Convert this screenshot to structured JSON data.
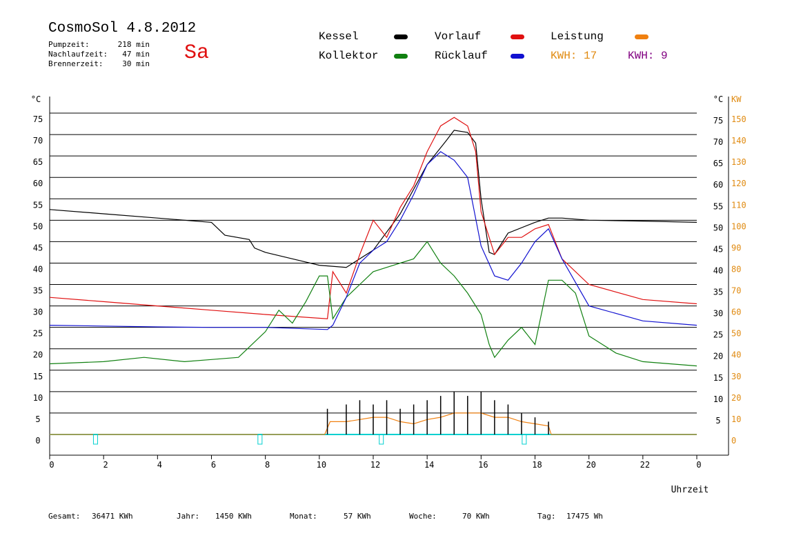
{
  "header": {
    "title": "CosmoSol 4.8.2012",
    "day": "Sa",
    "stats": [
      {
        "label": "Pumpzeit:",
        "value": "218 min"
      },
      {
        "label": "Nachlaufzeit:",
        "value": "47 min"
      },
      {
        "label": "Brennerzeit:",
        "value": "30 min"
      }
    ]
  },
  "legend": {
    "items": [
      {
        "label": "Kessel",
        "color": "#000000"
      },
      {
        "label": "Vorlauf",
        "color": "#e01010"
      },
      {
        "label": "Leistung",
        "color": "#f08010"
      },
      {
        "label": "Kollektor",
        "color": "#108010"
      },
      {
        "label": "Rücklauf",
        "color": "#1010d0"
      }
    ],
    "kwh": [
      {
        "label": "KWH: 17",
        "color": "#e08a10"
      },
      {
        "label": "KWH: 9",
        "color": "#800080"
      }
    ]
  },
  "footer": [
    {
      "label": "Gesamt:",
      "value": "36471 KWh"
    },
    {
      "label": "Jahr:",
      "value": "1450 KWh"
    },
    {
      "label": "Monat:",
      "value": "57 KWh"
    },
    {
      "label": "Woche:",
      "value": "70 KWh"
    },
    {
      "label": "Tag:",
      "value": "17475 Wh"
    }
  ],
  "chart_data": {
    "type": "line",
    "xlabel": "Uhrzeit",
    "ylabel_left": "°C",
    "ylabel_right": "KW",
    "xlim": [
      0,
      24
    ],
    "ylim": [
      0,
      75
    ],
    "y2lim": [
      0,
      150
    ],
    "x_ticks": [
      "0",
      "2",
      "4",
      "6",
      "8",
      "10",
      "12",
      "14",
      "16",
      "18",
      "20",
      "22",
      "0"
    ],
    "y_ticks_left": [
      "0",
      "5",
      "10",
      "15",
      "20",
      "25",
      "30",
      "35",
      "40",
      "45",
      "50",
      "55",
      "60",
      "65",
      "70",
      "75"
    ],
    "y_ticks_right_temp": [
      "5",
      "10",
      "15",
      "20",
      "25",
      "30",
      "35",
      "40",
      "45",
      "50",
      "55",
      "60",
      "65",
      "70",
      "75"
    ],
    "y_ticks_right_kw": [
      "0",
      "10",
      "20",
      "30",
      "40",
      "50",
      "60",
      "70",
      "80",
      "90",
      "100",
      "110",
      "120",
      "130",
      "140",
      "150"
    ],
    "grid": true,
    "series": [
      {
        "name": "Kessel",
        "color": "#000000",
        "x": [
          0,
          2,
          4,
          6,
          6.5,
          7.4,
          7.6,
          8,
          9,
          10,
          11,
          12,
          13,
          14,
          14.7,
          15,
          15.5,
          15.8,
          16,
          16.3,
          16.5,
          17,
          18,
          18.5,
          19,
          20,
          22,
          24
        ],
        "y": [
          52.5,
          51.5,
          50.5,
          49.5,
          46.5,
          45.5,
          43.5,
          42.5,
          41,
          39.5,
          39,
          43,
          51.5,
          63,
          68.5,
          71,
          70.5,
          68,
          55,
          42.5,
          42,
          47,
          49.5,
          50.5,
          50.5,
          50,
          49.8,
          49.5
        ]
      },
      {
        "name": "Vorlauf",
        "color": "#e01010",
        "x": [
          0,
          2,
          4,
          6,
          8,
          10.3,
          10.5,
          11,
          11.5,
          12,
          12.5,
          13,
          13.5,
          14,
          14.5,
          15,
          15.5,
          15.8,
          16,
          16.5,
          17,
          17.5,
          18,
          18.5,
          19,
          20,
          22,
          24
        ],
        "y": [
          32,
          31,
          30,
          29,
          28,
          27,
          38,
          33,
          42,
          50,
          46,
          53,
          58,
          66,
          72,
          74,
          72,
          66,
          52,
          42,
          46,
          46,
          48,
          49,
          41,
          35,
          31.5,
          30.5
        ]
      },
      {
        "name": "Kollektor",
        "color": "#108010",
        "x": [
          0,
          2,
          3.5,
          5,
          6,
          7,
          8,
          8.5,
          9,
          9.5,
          10,
          10.3,
          10.5,
          11,
          11.5,
          12,
          12.5,
          13,
          13.5,
          14,
          14.5,
          15,
          15.5,
          16,
          16.3,
          16.5,
          17,
          17.5,
          18,
          18.5,
          19,
          19.5,
          20,
          21,
          22,
          23,
          24
        ],
        "y": [
          16.5,
          17,
          18,
          17,
          17.5,
          18,
          24,
          29,
          26,
          31,
          37,
          37,
          27,
          32,
          35,
          38,
          39,
          40,
          41,
          45,
          40,
          37,
          33,
          28,
          21,
          18,
          22,
          25,
          21,
          36,
          36,
          33,
          23,
          19,
          17,
          16.5,
          16
        ]
      },
      {
        "name": "Rücklauf",
        "color": "#1010d0",
        "x": [
          0,
          2,
          4,
          6,
          8,
          10.3,
          10.5,
          11,
          11.5,
          12,
          12.5,
          13,
          13.5,
          14,
          14.5,
          15,
          15.5,
          16,
          16.5,
          17,
          17.5,
          18,
          18.5,
          19,
          20,
          22,
          24
        ],
        "y": [
          25.5,
          25.3,
          25.1,
          25,
          25,
          24.5,
          25.5,
          32,
          40,
          43,
          45,
          50,
          56,
          63,
          66,
          64,
          60,
          44,
          37,
          36,
          40,
          45,
          48,
          41,
          30,
          26.5,
          25.5
        ]
      },
      {
        "name": "Leistung",
        "color": "#f08010",
        "x": [
          0,
          10.2,
          10.4,
          11,
          11.5,
          12,
          12.5,
          13,
          13.5,
          14,
          14.5,
          15,
          15.5,
          16,
          16.5,
          17,
          17.5,
          18,
          18.5,
          18.6,
          24
        ],
        "y": [
          0,
          0,
          3,
          3,
          3.5,
          4,
          4,
          3,
          2.5,
          3.5,
          4,
          5,
          5,
          5,
          4,
          4,
          3,
          2.5,
          2,
          0,
          0
        ]
      }
    ],
    "power_ticks_kw_spikes": {
      "x": [
        10.3,
        11,
        11.5,
        12,
        12.5,
        13,
        13.5,
        14,
        14.5,
        15,
        15.5,
        16,
        16.5,
        17,
        17.5,
        18,
        18.5
      ],
      "y": [
        6,
        7,
        8,
        7,
        8,
        6,
        7,
        8,
        9,
        10,
        9,
        10,
        8,
        7,
        5,
        4,
        3
      ]
    },
    "pump_markers_x": [
      1.7,
      7.8,
      12.3,
      17.6
    ]
  }
}
